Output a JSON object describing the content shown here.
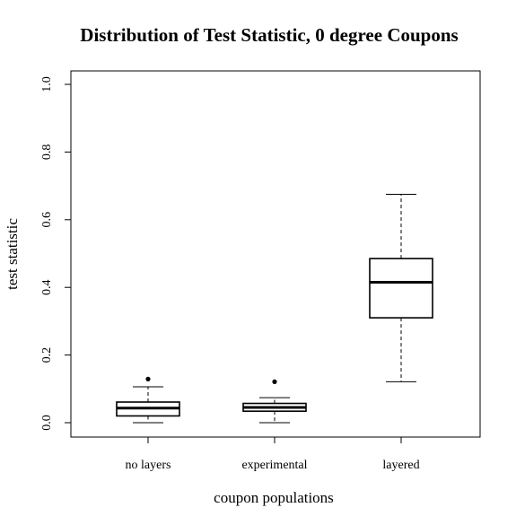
{
  "chart_data": {
    "type": "boxplot",
    "title": "Distribution of Test Statistic, 0 degree Coupons",
    "xlabel": "coupon populations",
    "ylabel": "test statistic",
    "ylim": [
      0.0,
      1.0
    ],
    "yticks": [
      "0.0",
      "0.2",
      "0.4",
      "0.6",
      "0.8",
      "1.0"
    ],
    "categories": [
      "no layers",
      "experimental",
      "layered"
    ],
    "boxes": [
      {
        "name": "no layers",
        "whisker_low": 0.0,
        "q1": 0.02,
        "median": 0.043,
        "q3": 0.061,
        "whisker_high": 0.106,
        "outliers": [
          0.129
        ]
      },
      {
        "name": "experimental",
        "whisker_low": 0.0,
        "q1": 0.034,
        "median": 0.045,
        "q3": 0.057,
        "whisker_high": 0.074,
        "outliers": [
          0.121
        ]
      },
      {
        "name": "layered",
        "whisker_low": 0.121,
        "q1": 0.31,
        "median": 0.415,
        "q3": 0.485,
        "whisker_high": 0.675,
        "outliers": []
      }
    ],
    "grid": false
  }
}
